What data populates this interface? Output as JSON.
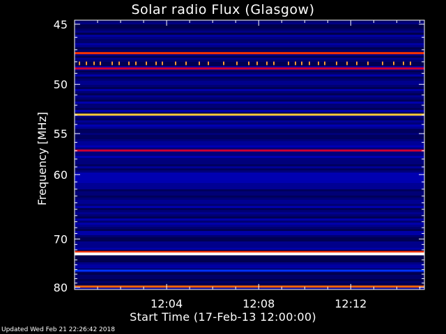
{
  "chart_data": {
    "type": "heatmap",
    "title": "Solar radio Flux (Glasgow)",
    "xlabel": "Start Time (17-Feb-13 12:00:00)",
    "ylabel": "Frequency [MHz]",
    "y_axis": {
      "ticks": [
        45,
        50,
        55,
        60,
        70,
        80
      ],
      "scale": "reciprocal",
      "inverted": true
    },
    "x_axis": {
      "unit": "minutes after 12:00:00",
      "range": [
        0,
        15.2
      ],
      "ticks": [
        {
          "value": 4,
          "label": "12:04"
        },
        {
          "value": 8,
          "label": "12:08"
        },
        {
          "value": 12,
          "label": "12:12"
        }
      ]
    },
    "background_colors": [
      "#000033",
      "#000066",
      "#000099",
      "#0000cc"
    ],
    "bands": [
      {
        "freq": 47.3,
        "color": "#ff3300"
      },
      {
        "freq": 48.1,
        "color": "#ff9933",
        "dotted": true
      },
      {
        "freq": 48.6,
        "color": "#cc0033"
      },
      {
        "freq": 53.0,
        "color": "#ffcc33"
      },
      {
        "freq": 57.0,
        "color": "#cc0033"
      },
      {
        "freq": 72.5,
        "color": "#ff3300"
      },
      {
        "freq": 72.8,
        "color": "#ffffff"
      },
      {
        "freq": 76.3,
        "color": "#0033ff"
      },
      {
        "freq": 79.9,
        "color": "#ff6600"
      }
    ]
  },
  "footer": "Updated Wed Feb 21 22:26:42 2018"
}
